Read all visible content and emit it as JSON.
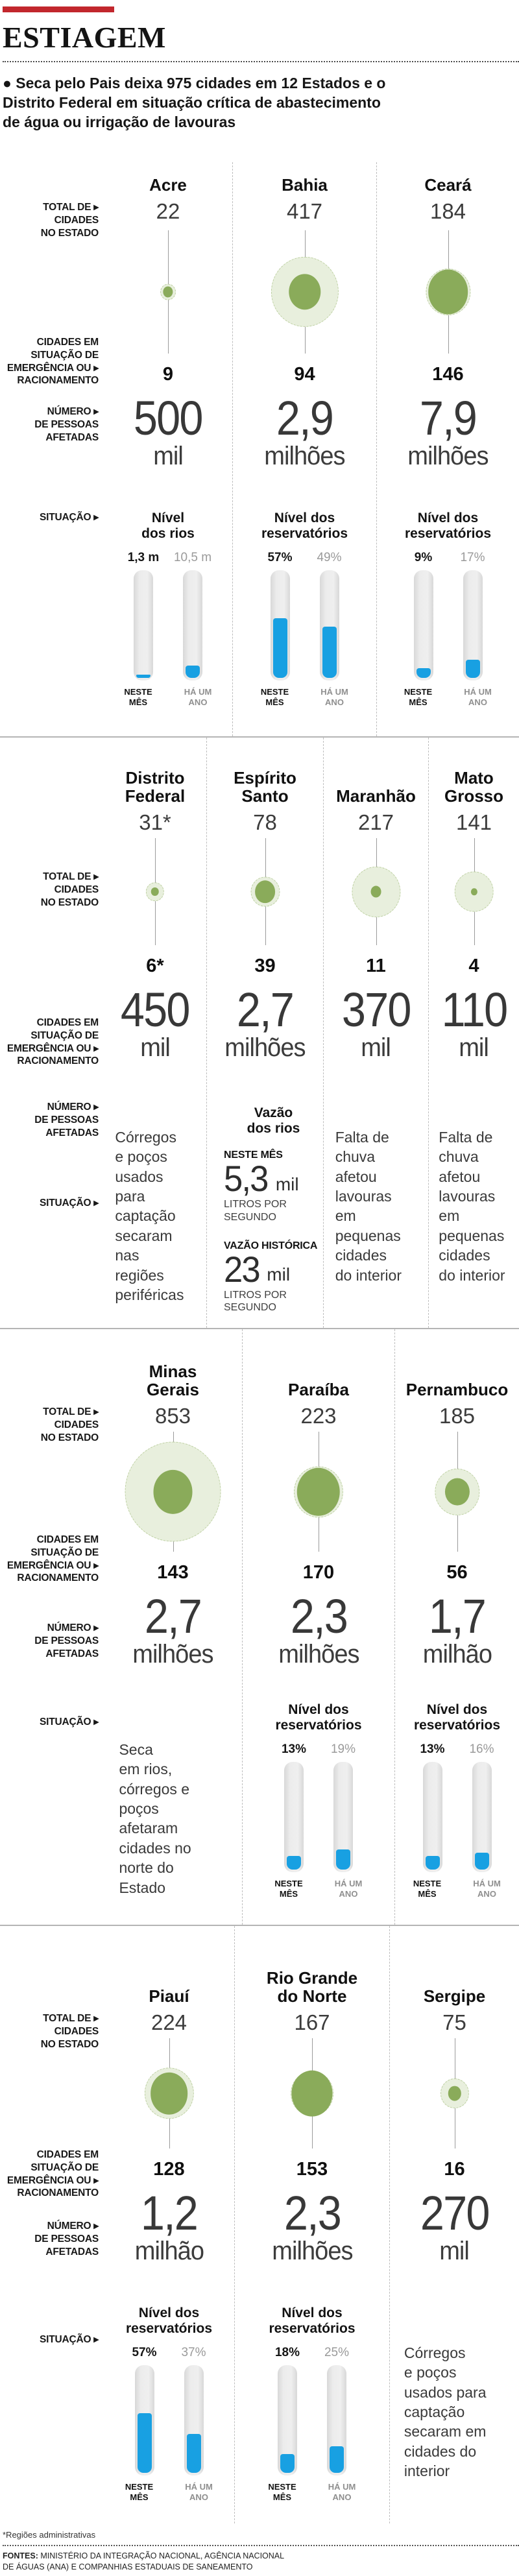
{
  "header": {
    "title": "ESTIAGEM",
    "intro": "● Seca pelo Pais deixa 975 cidades em 12 Estados e o\nDistrito Federal em situação crítica de abastecimento\nde água ou irrigação de lavouras"
  },
  "labels": {
    "total": "TOTAL DE ▸\nCIDADES\nNO ESTADO",
    "emergency": "CIDADES EM\nSITUAÇÃO DE\nEMERGÊNCIA OU ▸\nRACIONAMENTO",
    "people": "NÚMERO ▸\nDE PESSOAS\nAFETADAS",
    "situation": "SITUAÇÃO ▸"
  },
  "bar_captions": {
    "now": "NESTE\nMÊS",
    "ago": "HÁ UM\nANO"
  },
  "colors": {
    "accent_red": "#c2272d",
    "green_dark": "#8aab5a",
    "green_light": "#e8efdd",
    "bar_blue": "#18a0e2",
    "tube_gray": "#e3e3e3"
  },
  "footer": {
    "note": "*Regiões administrativas",
    "sources_label": "FONTES:",
    "sources_text": " MINISTÉRIO DA INTEGRAÇÃO NACIONAL, AGÊNCIA NACIONAL\nDE ÁGUAS (ANA) E COMPANHIAS ESTADUAIS DE SANEAMENTO"
  },
  "chart_data": {
    "type": "table",
    "title": "ESTIAGEM",
    "legend": [
      "total de cidades no estado (círculo claro)",
      "cidades em emergência ou racionamento (círculo escuro)"
    ],
    "rows": [
      {
        "states": [
          {
            "name": "Acre",
            "total": "22",
            "total_n": 22,
            "emergency": "9",
            "emergency_n": 9,
            "people": "500",
            "people_unit": "mil",
            "situation": {
              "kind": "bars",
              "title": "Nível\ndos rios",
              "now": "1,3 m",
              "ago": "10,5 m",
              "now_fill": 3,
              "ago_fill": 12
            }
          },
          {
            "name": "Bahia",
            "total": "417",
            "total_n": 417,
            "emergency": "94",
            "emergency_n": 94,
            "people": "2,9",
            "people_unit": "milhões",
            "situation": {
              "kind": "bars",
              "title": "Nível dos\nreservatórios",
              "now": "57%",
              "ago": "49%",
              "now_fill": 57,
              "ago_fill": 49
            }
          },
          {
            "name": "Ceará",
            "total": "184",
            "total_n": 184,
            "emergency": "146",
            "emergency_n": 146,
            "people": "7,9",
            "people_unit": "milhões",
            "situation": {
              "kind": "bars",
              "title": "Nível dos\nreservatórios",
              "now": "9%",
              "ago": "17%",
              "now_fill": 9,
              "ago_fill": 17
            }
          }
        ]
      },
      {
        "states": [
          {
            "name": "Distrito\nFederal",
            "total": "31*",
            "total_n": 31,
            "emergency": "6*",
            "emergency_n": 6,
            "people": "450",
            "people_unit": "mil",
            "situation": {
              "kind": "text",
              "text": "Córregos\ne poços\nusados\npara\ncaptação\nsecaram\nnas\nregiões\nperiféricas"
            }
          },
          {
            "name": "Espírito\nSanto",
            "total": "78",
            "total_n": 78,
            "emergency": "39",
            "emergency_n": 39,
            "people": "2,7",
            "people_unit": "milhões",
            "situation": {
              "kind": "flow",
              "title": "Vazão\ndos rios",
              "now_label": "NESTE MÊS",
              "now_value": "5,3",
              "now_suffix": "mil",
              "now_unit": "LITROS POR\nSEGUNDO",
              "hist_label": "VAZÃO HISTÓRICA",
              "hist_value": "23",
              "hist_suffix": "mil",
              "hist_unit": "LITROS POR\nSEGUNDO"
            }
          },
          {
            "name": "Maranhão",
            "total": "217",
            "total_n": 217,
            "emergency": "11",
            "emergency_n": 11,
            "people": "370",
            "people_unit": "mil",
            "situation": {
              "kind": "text",
              "text": "Falta de\nchuva\nafetou\nlavouras\nem\npequenas\ncidades\ndo interior"
            }
          },
          {
            "name": "Mato\nGrosso",
            "total": "141",
            "total_n": 141,
            "emergency": "4",
            "emergency_n": 4,
            "people": "110",
            "people_unit": "mil",
            "situation": {
              "kind": "text",
              "text": "Falta de\nchuva\nafetou\nlavouras\nem\npequenas\ncidades\ndo interior"
            }
          }
        ]
      },
      {
        "states": [
          {
            "name": "Minas\nGerais",
            "total": "853",
            "total_n": 853,
            "emergency": "143",
            "emergency_n": 143,
            "people": "2,7",
            "people_unit": "milhões",
            "situation": {
              "kind": "text",
              "text": "Seca\nem rios,\ncórregos e\npoços\nafetaram\ncidades no\nnorte do\nEstado"
            }
          },
          {
            "name": "Paraíba",
            "total": "223",
            "total_n": 223,
            "emergency": "170",
            "emergency_n": 170,
            "people": "2,3",
            "people_unit": "milhões",
            "situation": {
              "kind": "bars",
              "title": "Nível dos\nreservatórios",
              "now": "13%",
              "ago": "19%",
              "now_fill": 13,
              "ago_fill": 19
            }
          },
          {
            "name": "Pernambuco",
            "total": "185",
            "total_n": 185,
            "emergency": "56",
            "emergency_n": 56,
            "people": "1,7",
            "people_unit": "milhão",
            "situation": {
              "kind": "bars",
              "title": "Nível dos\nreservatórios",
              "now": "13%",
              "ago": "16%",
              "now_fill": 13,
              "ago_fill": 16
            }
          }
        ]
      },
      {
        "states": [
          {
            "name": "Piauí",
            "total": "224",
            "total_n": 224,
            "emergency": "128",
            "emergency_n": 128,
            "people": "1,2",
            "people_unit": "milhão",
            "situation": {
              "kind": "bars",
              "title": "Nível dos\nreservatórios",
              "now": "57%",
              "ago": "37%",
              "now_fill": 57,
              "ago_fill": 37
            }
          },
          {
            "name": "Rio Grande\ndo Norte",
            "total": "167",
            "total_n": 167,
            "emergency": "153",
            "emergency_n": 153,
            "people": "2,3",
            "people_unit": "milhões",
            "situation": {
              "kind": "bars",
              "title": "Nível dos\nreservatórios",
              "now": "18%",
              "ago": "25%",
              "now_fill": 18,
              "ago_fill": 25
            }
          },
          {
            "name": "Sergipe",
            "total": "75",
            "total_n": 75,
            "emergency": "16",
            "emergency_n": 16,
            "people": "270",
            "people_unit": "mil",
            "situation": {
              "kind": "text",
              "text": "Córregos\ne poços\nusados para\ncaptação\nsecaram em\ncidades do\ninterior"
            }
          }
        ]
      }
    ]
  }
}
